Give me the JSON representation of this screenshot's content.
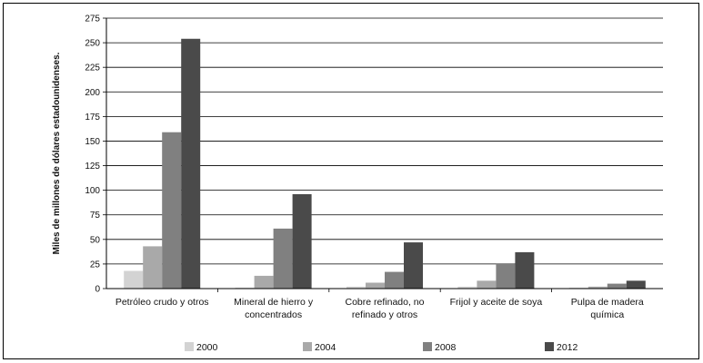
{
  "chart_data": {
    "type": "bar",
    "title": "",
    "xlabel": "",
    "ylabel": "Miles de millones de dólares estadounidenses.",
    "ylim": [
      0,
      275
    ],
    "yticks": [
      0,
      25,
      50,
      75,
      100,
      125,
      150,
      175,
      200,
      225,
      250,
      275
    ],
    "grid": true,
    "legend_position": "bottom",
    "categories": [
      [
        "Petróleo crudo y otros"
      ],
      [
        "Mineral de hierro y",
        "concentrados"
      ],
      [
        "Cobre refinado, no",
        "refinado y otros"
      ],
      [
        "Frijol y aceite de soya"
      ],
      [
        "Pulpa de madera",
        "química"
      ]
    ],
    "series": [
      {
        "name": "2000",
        "color": "#d3d3d3",
        "values": [
          18,
          1,
          2,
          2,
          1
        ]
      },
      {
        "name": "2004",
        "color": "#a9a9a9",
        "values": [
          43,
          13,
          6,
          8,
          2
        ]
      },
      {
        "name": "2008",
        "color": "#808080",
        "values": [
          159,
          61,
          17,
          25,
          5
        ]
      },
      {
        "name": "2012",
        "color": "#4a4a4a",
        "values": [
          254,
          96,
          47,
          37,
          8
        ]
      }
    ]
  }
}
